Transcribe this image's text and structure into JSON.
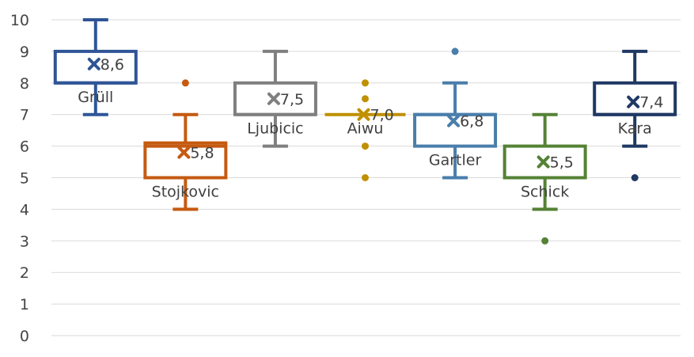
{
  "chart_data": {
    "type": "boxplot",
    "ylim": [
      0,
      10
    ],
    "yticks": [
      "0",
      "1",
      "2",
      "3",
      "4",
      "5",
      "6",
      "7",
      "8",
      "9",
      "10"
    ],
    "grid": true,
    "series": [
      {
        "name": "Grüll",
        "color": "#2f5597",
        "whisker_low": 7,
        "q1": 8,
        "median": 8,
        "q3": 9,
        "whisker_high": 10,
        "mean": 8.6,
        "mean_label": "8,6",
        "outliers": []
      },
      {
        "name": "Stojkovic",
        "color": "#c55a11",
        "whisker_low": 4,
        "q1": 5,
        "median": 6,
        "q3": 6.1,
        "whisker_high": 7,
        "mean": 5.8,
        "mean_label": "5,8",
        "outliers": [
          8
        ]
      },
      {
        "name": "Ljubicic",
        "color": "#7f7f7f",
        "whisker_low": 6,
        "q1": 7,
        "median": 7,
        "q3": 8,
        "whisker_high": 9,
        "mean": 7.5,
        "mean_label": "7,5",
        "outliers": []
      },
      {
        "name": "Aiwu",
        "color": "#bf9000",
        "whisker_low": 7,
        "q1": 7,
        "median": 7,
        "q3": 7,
        "whisker_high": 7,
        "mean": 7.0,
        "mean_label": "7,0",
        "outliers": [
          5,
          6,
          7.5,
          8
        ]
      },
      {
        "name": "Gartler",
        "color": "#4a7eab",
        "whisker_low": 5,
        "q1": 6,
        "median": 7,
        "q3": 7,
        "whisker_high": 8,
        "mean": 6.8,
        "mean_label": "6,8",
        "outliers": [
          9
        ]
      },
      {
        "name": "Schick",
        "color": "#548235",
        "whisker_low": 4,
        "q1": 5,
        "median": 5,
        "q3": 6,
        "whisker_high": 7,
        "mean": 5.5,
        "mean_label": "5,5",
        "outliers": [
          3
        ]
      },
      {
        "name": "Kara",
        "color": "#1f3864",
        "whisker_low": 6,
        "q1": 7,
        "median": 7,
        "q3": 8,
        "whisker_high": 9,
        "mean": 7.4,
        "mean_label": "7,4",
        "outliers": [
          5
        ]
      }
    ]
  }
}
